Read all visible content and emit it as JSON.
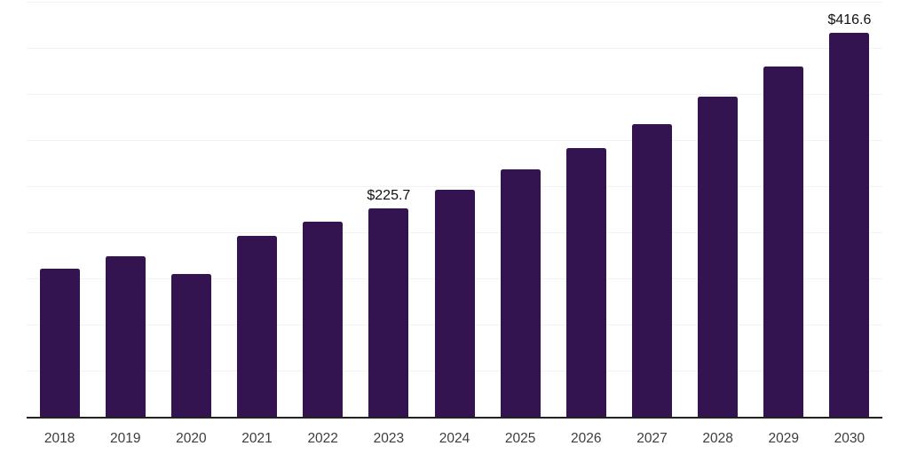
{
  "chart_data": {
    "type": "bar",
    "title": "",
    "xlabel": "",
    "ylabel": "",
    "categories": [
      "2018",
      "2019",
      "2020",
      "2021",
      "2022",
      "2023",
      "2024",
      "2025",
      "2026",
      "2027",
      "2028",
      "2029",
      "2030"
    ],
    "values": [
      160.9,
      174.3,
      155.2,
      196.6,
      211.4,
      225.7,
      246.0,
      268.2,
      291.0,
      317.5,
      347.0,
      379.8,
      416.6
    ],
    "data_labels": [
      null,
      null,
      null,
      null,
      null,
      "$225.7",
      null,
      null,
      null,
      null,
      null,
      null,
      "$416.6"
    ],
    "ylim": [
      0,
      452
    ],
    "y_gridlines": [
      50,
      100,
      150,
      200,
      250,
      300,
      350,
      400,
      450
    ],
    "grid": "horizontal",
    "legend": "none",
    "y_axis_tick_labels": "none",
    "colors": {
      "bar": "#331350",
      "gridline": "#f3f3f3",
      "axis_line": "#222222",
      "tick_label": "#3d3d3d",
      "data_label": "#111111",
      "background": "#ffffff"
    }
  }
}
